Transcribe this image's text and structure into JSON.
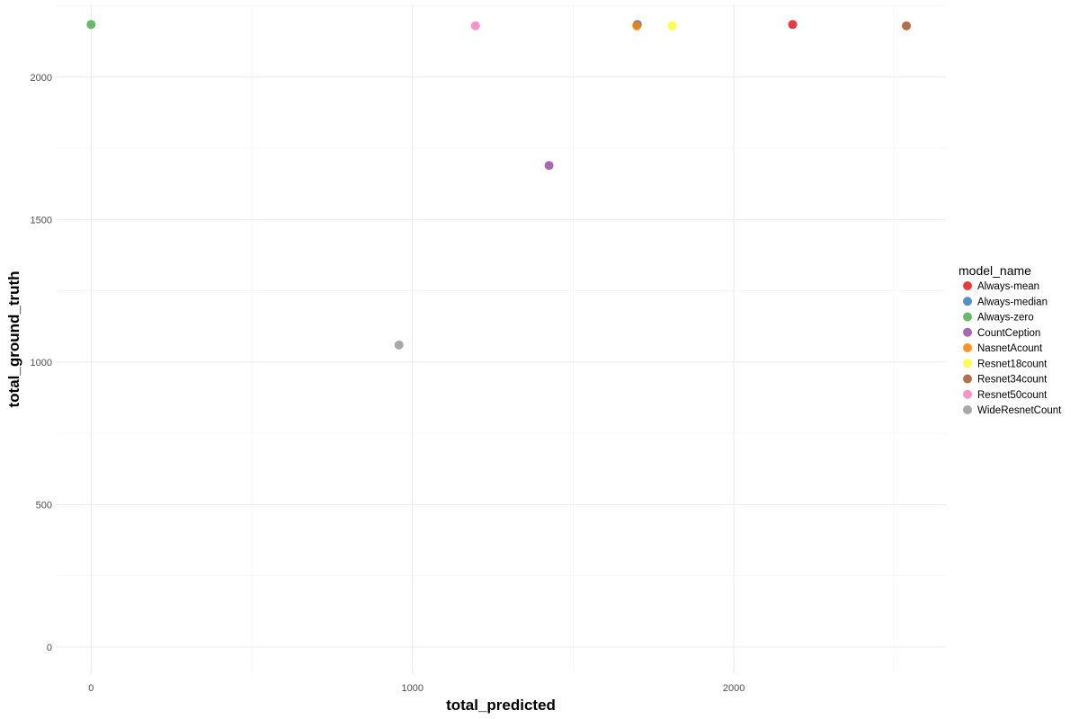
{
  "chart_data": {
    "type": "scatter",
    "xlabel": "total_predicted",
    "ylabel": "total_ground_truth",
    "xlim": [
      -110,
      2660
    ],
    "ylim": [
      -95,
      2255
    ],
    "x_ticks": [
      0,
      1000,
      2000
    ],
    "x_minor_ticks": [
      500,
      1500,
      2500
    ],
    "y_ticks": [
      0,
      500,
      1000,
      1500,
      2000
    ],
    "y_minor_ticks": [
      250,
      750,
      1250,
      1750,
      2250
    ],
    "grid": true,
    "legend": {
      "title": "model_name",
      "position": "right"
    },
    "series": [
      {
        "name": "Always-mean",
        "color": "#E41A1C",
        "x": [
          2183
        ],
        "y": [
          2185
        ]
      },
      {
        "name": "Always-median",
        "color": "#377EB8",
        "x": [
          1700
        ],
        "y": [
          2185
        ]
      },
      {
        "name": "Always-zero",
        "color": "#4DAF4A",
        "x": [
          0
        ],
        "y": [
          2185
        ]
      },
      {
        "name": "CountCeption",
        "color": "#984EA3",
        "x": [
          1425
        ],
        "y": [
          1690
        ]
      },
      {
        "name": "NasnetAcount",
        "color": "#FF7F00",
        "x": [
          1698
        ],
        "y": [
          2180
        ]
      },
      {
        "name": "Resnet18count",
        "color": "#FFFF33",
        "x": [
          1808
        ],
        "y": [
          2180
        ]
      },
      {
        "name": "Resnet34count",
        "color": "#A65628",
        "x": [
          2537
        ],
        "y": [
          2180
        ]
      },
      {
        "name": "Resnet50count",
        "color": "#F781BF",
        "x": [
          1196
        ],
        "y": [
          2180
        ]
      },
      {
        "name": "WideResnetCount",
        "color": "#999999",
        "x": [
          958
        ],
        "y": [
          1060
        ]
      }
    ]
  }
}
